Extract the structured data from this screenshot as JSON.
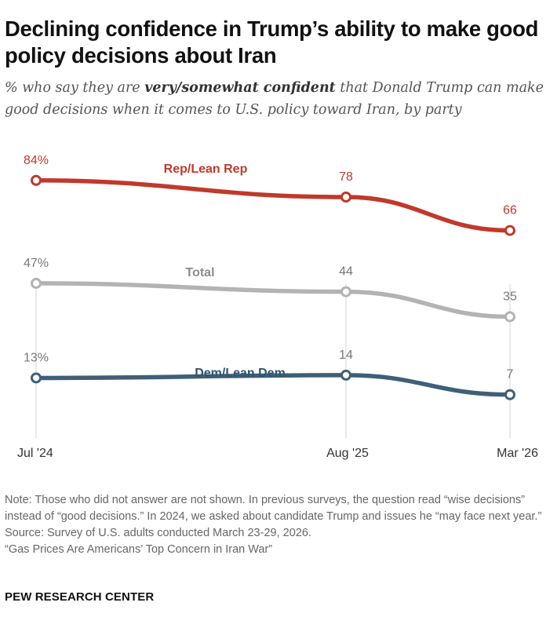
{
  "title": "Declining confidence in Trump’s ability to make good policy decisions about Iran",
  "subtitle": {
    "before": "% who say they are ",
    "emphasis": "very/somewhat confident",
    "after": " that Donald Trump can make good decisions when it comes to U.S. policy toward Iran, by party"
  },
  "chart_data": {
    "type": "line",
    "categories": [
      "Jul '24",
      "Aug '25",
      "Mar '26"
    ],
    "ylim": [
      0,
      100
    ],
    "grid": false,
    "legend": "inline labels",
    "series": [
      {
        "name": "Rep/Lean Rep",
        "values": [
          84,
          78,
          66
        ],
        "labels": [
          "84%",
          "78",
          "66"
        ],
        "color": "#c0392b"
      },
      {
        "name": "Total",
        "values": [
          47,
          44,
          35
        ],
        "labels": [
          "47%",
          "44",
          "35"
        ],
        "color": "#b3b3b3"
      },
      {
        "name": "Dem/Lean Dem",
        "values": [
          13,
          14,
          7
        ],
        "labels": [
          "13%",
          "14",
          "7"
        ],
        "color": "#3f5f78"
      }
    ]
  },
  "colors": {
    "rep_label": "#c0392b",
    "total_label": "#8c8c8c",
    "dem_label": "#2f5570",
    "value_rep": "#c0392b",
    "value_other": "#777777"
  },
  "notes": {
    "note": "Note: Those who did not answer are not shown. In previous surveys, the question read “wise decisions” instead of “good decisions.” In 2024, we asked about candidate Trump and issues he “may face next year.”",
    "source": "Source: Survey of U.S. adults conducted March 23-29, 2026.",
    "report": "“Gas Prices Are Americans’ Top Concern in Iran War”"
  },
  "brand": "PEW RESEARCH CENTER"
}
